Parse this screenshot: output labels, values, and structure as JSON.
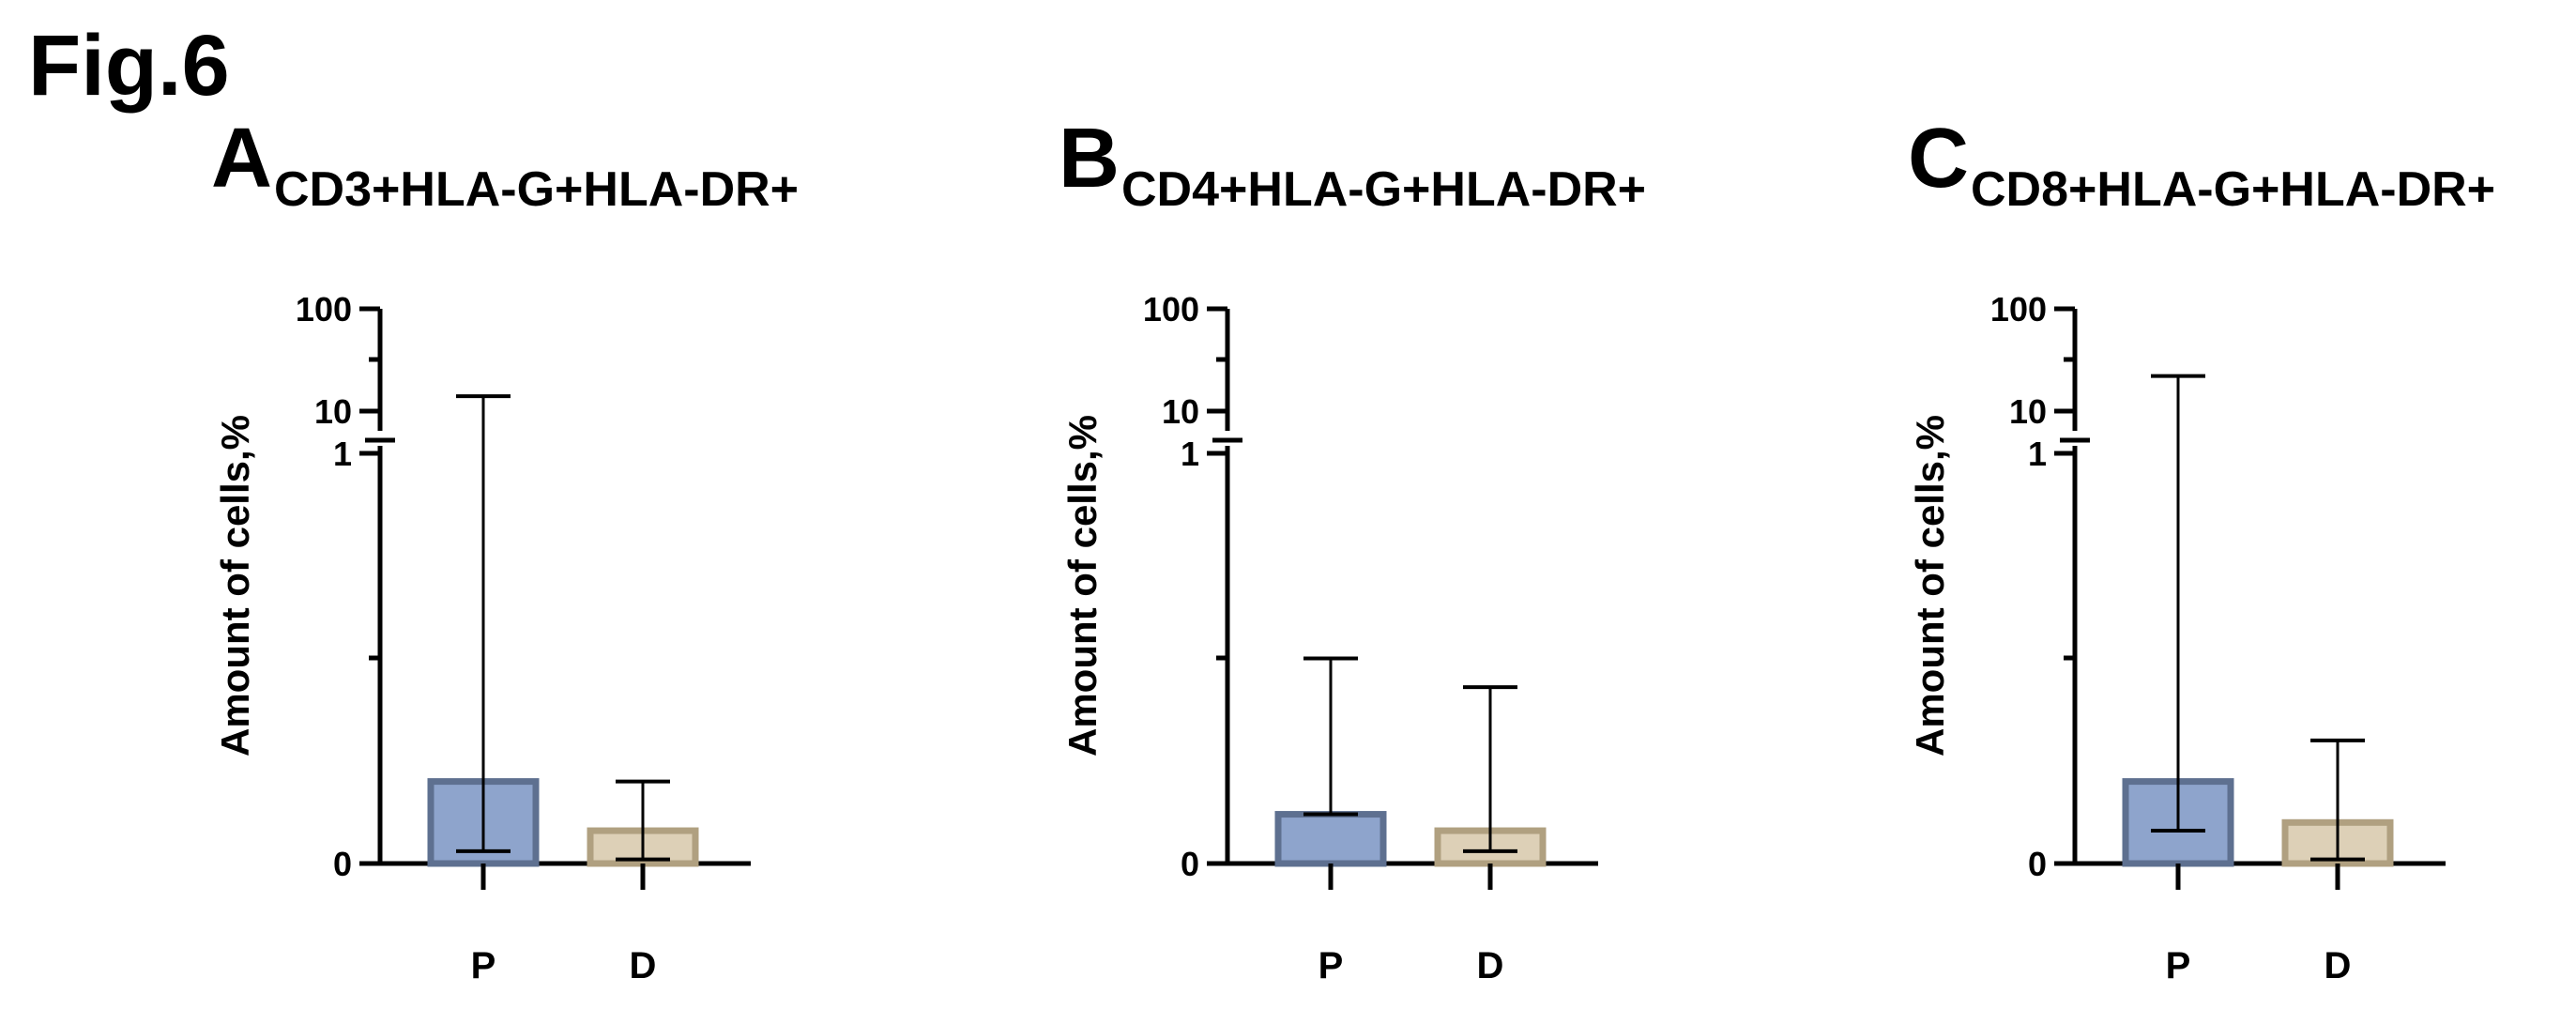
{
  "figure_label": "Fig.6",
  "panels": [
    {
      "letter": "A",
      "heading": "CD3+HLA-G+HLA-DR+"
    },
    {
      "letter": "B",
      "heading": "CD4+HLA-G+HLA-DR+"
    },
    {
      "letter": "C",
      "heading": "CD8+HLA-G+HLA-DR+"
    }
  ],
  "chart_data": [
    {
      "type": "bar",
      "title": "CD3+HLA-G+HLA-DR+",
      "ylabel": "Amount of cells,%",
      "categories": [
        "P",
        "D"
      ],
      "y_axis": {
        "scale": "segmented",
        "lower_segment": [
          0,
          1
        ],
        "upper_segment_log": [
          1,
          100
        ],
        "tick_labels": [
          "0",
          "1",
          "10",
          "100"
        ]
      },
      "values": [
        0.2,
        0.08
      ],
      "error_low": [
        0.03,
        0.01
      ],
      "error_high": [
        14,
        0.2
      ],
      "colors": {
        "fill": [
          "#8EA4CC",
          "#DDD0B7"
        ],
        "edge": [
          "#5E7090",
          "#B0A080"
        ]
      }
    },
    {
      "type": "bar",
      "title": "CD4+HLA-G+HLA-DR+",
      "ylabel": "Amount of cells,%",
      "categories": [
        "P",
        "D"
      ],
      "y_axis": {
        "scale": "segmented",
        "lower_segment": [
          0,
          1
        ],
        "upper_segment_log": [
          1,
          100
        ],
        "tick_labels": [
          "0",
          "1",
          "10",
          "100"
        ]
      },
      "values": [
        0.12,
        0.08
      ],
      "error_low": [
        0.12,
        0.03
      ],
      "error_high": [
        0.5,
        0.43
      ],
      "colors": {
        "fill": [
          "#8EA4CC",
          "#DDD0B7"
        ],
        "edge": [
          "#5E7090",
          "#B0A080"
        ]
      }
    },
    {
      "type": "bar",
      "title": "CD8+HLA-G+HLA-DR+",
      "ylabel": "Amount of cells,%",
      "categories": [
        "P",
        "D"
      ],
      "y_axis": {
        "scale": "segmented",
        "lower_segment": [
          0,
          1
        ],
        "upper_segment_log": [
          1,
          100
        ],
        "tick_labels": [
          "0",
          "1",
          "10",
          "100"
        ]
      },
      "values": [
        0.2,
        0.1
      ],
      "error_low": [
        0.08,
        0.01
      ],
      "error_high": [
        22,
        0.3
      ],
      "colors": {
        "fill": [
          "#8EA4CC",
          "#DDD0B7"
        ],
        "edge": [
          "#5E7090",
          "#B0A080"
        ]
      }
    }
  ]
}
